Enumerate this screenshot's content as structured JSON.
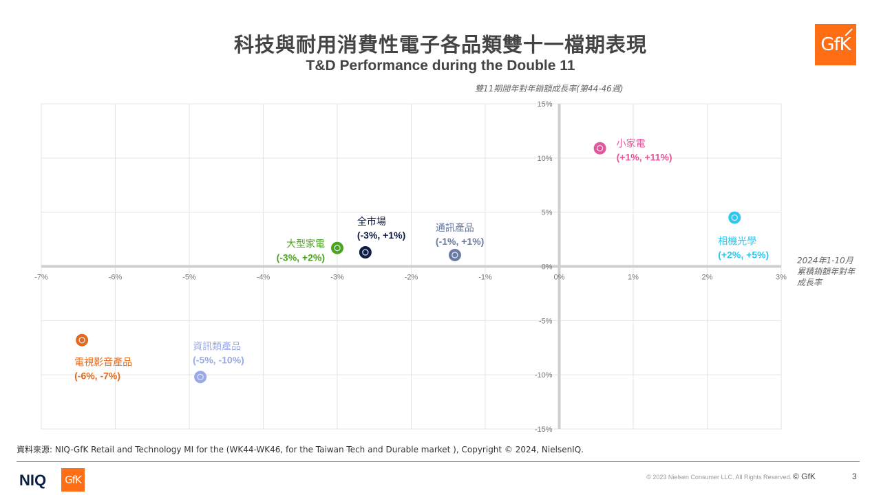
{
  "title_cn": "科技與耐用消費性電子各品類雙十一檔期表現",
  "title_en": "T&D Performance during the Double 11",
  "brand_top": "GfK",
  "chart_data": {
    "type": "scatter",
    "title": "科技與耐用消費性電子各品類雙十一檔期表現",
    "subtitle": "T&D Performance during the Double 11",
    "xlabel": "2024年1-10月累積銷額年對年成長率",
    "ylabel": "雙11期間年對年銷額成長率(第44-46週)",
    "xlim": [
      -7,
      3
    ],
    "ylim": [
      -15,
      15
    ],
    "x_ticks": [
      -7,
      -6,
      -5,
      -4,
      -3,
      -2,
      -1,
      0,
      1,
      2,
      3
    ],
    "y_ticks": [
      15,
      10,
      5,
      0,
      -5,
      -10,
      -15
    ],
    "x_tick_labels": [
      "-7%",
      "-6%",
      "-5%",
      "-4%",
      "-3%",
      "-2%",
      "-1%",
      "0%",
      "1%",
      "2%",
      "3%"
    ],
    "y_tick_labels": [
      "15%",
      "10%",
      "5%",
      "0%",
      "-5%",
      "-10%",
      "-15%"
    ],
    "grid": true,
    "points": [
      {
        "name": "小家電",
        "value_label": "(+1%, +11%)",
        "x": 0.55,
        "y": 10.9,
        "color": "#e0579a",
        "label_pos": "right"
      },
      {
        "name": "相機光學",
        "value_label": "(+2%, +5%)",
        "x": 2.37,
        "y": 4.5,
        "color": "#2fc7ef",
        "label_pos": "below-left"
      },
      {
        "name": "通訊產品",
        "value_label": "(-1%, +1%)",
        "x": -1.41,
        "y": 1.05,
        "color": "#6b7aa1",
        "label_pos": "above"
      },
      {
        "name": "全市場",
        "value_label": "(-3%, +1%)",
        "x": -2.62,
        "y": 1.3,
        "color": "#101c44",
        "label_pos": "above-right"
      },
      {
        "name": "大型家電",
        "value_label": "(-3%, +2%)",
        "x": -3.0,
        "y": 1.7,
        "color": "#4aa41c",
        "label_pos": "left"
      },
      {
        "name": "電視影音產品",
        "value_label": "(-6%, -7%)",
        "x": -6.45,
        "y": -6.8,
        "color": "#e06a1e",
        "label_pos": "below"
      },
      {
        "name": "資訊類產品",
        "value_label": "(-5%, -10%)",
        "x": -4.85,
        "y": -10.2,
        "color": "#9aaae8",
        "label_pos": "above"
      }
    ]
  },
  "source": "資料來源: NIQ-GfK Retail and Technology MI for the (WK44-WK46, for the Taiwan Tech and Durable market ), Copyright © 2024, NielsenIQ.",
  "footer": {
    "niq": "NIQ",
    "gfk": "GfK",
    "copyright": "© 2023 Nielsen Consumer LLC. All Rights Reserved.",
    "copyright_gfk": "© GfK",
    "page": "3"
  }
}
